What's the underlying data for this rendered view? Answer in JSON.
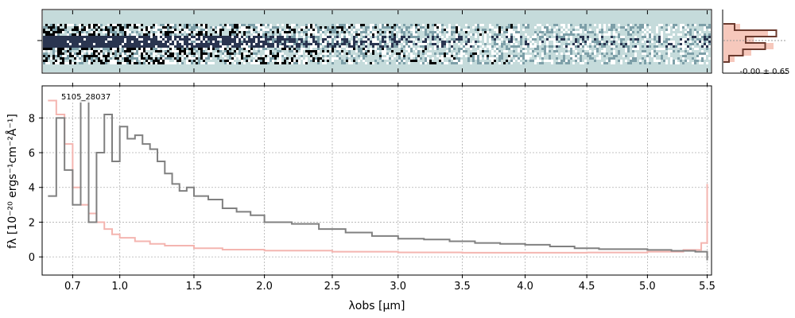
{
  "chart_data": [
    {
      "type": "heatmap",
      "panel": "2d-spectrum",
      "colormap": [
        "#ffffff",
        "#c5dbdb",
        "#7d9fa8",
        "#2a3550",
        "#000000"
      ],
      "background": "#c5dbdb",
      "x_domain": [
        0.52,
        5.53
      ]
    },
    {
      "type": "histogram",
      "panel": "residual-histogram",
      "label": "-0.00 ± 0.65",
      "colors": {
        "filled": "#f6c8bc",
        "step": "#6b3a2e"
      },
      "bins": [
        -0.9,
        -0.6,
        -0.3,
        0.0,
        0.3,
        0.6,
        0.9
      ],
      "filled_counts": [
        0.3,
        0.8,
        0.55,
        0.9,
        0.5,
        0.2
      ],
      "step_counts": [
        0.2,
        0.95,
        0.4,
        0.75,
        0.35,
        0.1
      ]
    },
    {
      "type": "line",
      "panel": "1d-spectrum",
      "annotation": "5105_28037",
      "xlabel": "λobs [μm]",
      "ylabel": "fλ [10⁻²⁰ ergs⁻¹cm⁻²Å⁻¹]",
      "ylim": [
        -1,
        9.8
      ],
      "x_domain": [
        0.52,
        5.53
      ],
      "x_ticks": [
        0.7,
        1.0,
        1.5,
        2.0,
        2.5,
        3.0,
        3.5,
        4.0,
        4.5,
        5.0,
        5.5
      ],
      "x_tick_labels": [
        "0.7",
        "1.0",
        "1.5",
        "2.0",
        "2.5",
        "3.0",
        "3.5",
        "4.0",
        "4.5",
        "5.0",
        "5.5"
      ],
      "y_ticks": [
        0,
        2,
        4,
        6,
        8
      ],
      "y_tick_labels": [
        "0",
        "2",
        "4",
        "6",
        "8"
      ],
      "grid": true,
      "series": [
        {
          "color": "#808080",
          "x": [
            0.55,
            0.6,
            0.65,
            0.7,
            0.75,
            0.8,
            0.85,
            0.9,
            0.95,
            1.0,
            1.05,
            1.1,
            1.15,
            1.2,
            1.25,
            1.3,
            1.35,
            1.4,
            1.45,
            1.5,
            1.6,
            1.7,
            1.8,
            1.9,
            2.0,
            2.2,
            2.4,
            2.6,
            2.8,
            3.0,
            3.2,
            3.4,
            3.6,
            3.8,
            4.0,
            4.2,
            4.4,
            4.6,
            4.8,
            5.0,
            5.2,
            5.4,
            5.5
          ],
          "y": [
            3.5,
            8.0,
            5.0,
            3.0,
            9.0,
            2.0,
            6.0,
            8.2,
            5.5,
            7.5,
            6.8,
            7.0,
            6.5,
            6.2,
            5.5,
            4.8,
            4.2,
            3.8,
            4.0,
            3.5,
            3.3,
            2.8,
            2.6,
            2.4,
            2.0,
            1.9,
            1.6,
            1.4,
            1.2,
            1.05,
            1.0,
            0.9,
            0.8,
            0.75,
            0.7,
            0.6,
            0.5,
            0.45,
            0.45,
            0.4,
            0.35,
            0.3,
            -0.2
          ]
        },
        {
          "color": "#f4b5b0",
          "x": [
            0.55,
            0.6,
            0.65,
            0.7,
            0.75,
            0.8,
            0.85,
            0.9,
            0.95,
            1.0,
            1.1,
            1.2,
            1.3,
            1.5,
            1.7,
            2.0,
            2.5,
            3.0,
            3.5,
            4.0,
            4.5,
            5.0,
            5.3,
            5.45,
            5.5
          ],
          "y": [
            9.0,
            8.2,
            6.5,
            4.0,
            3.0,
            2.5,
            2.0,
            1.6,
            1.3,
            1.1,
            0.9,
            0.75,
            0.65,
            0.5,
            0.42,
            0.36,
            0.3,
            0.26,
            0.24,
            0.24,
            0.25,
            0.3,
            0.4,
            0.8,
            4.2
          ]
        }
      ]
    }
  ]
}
